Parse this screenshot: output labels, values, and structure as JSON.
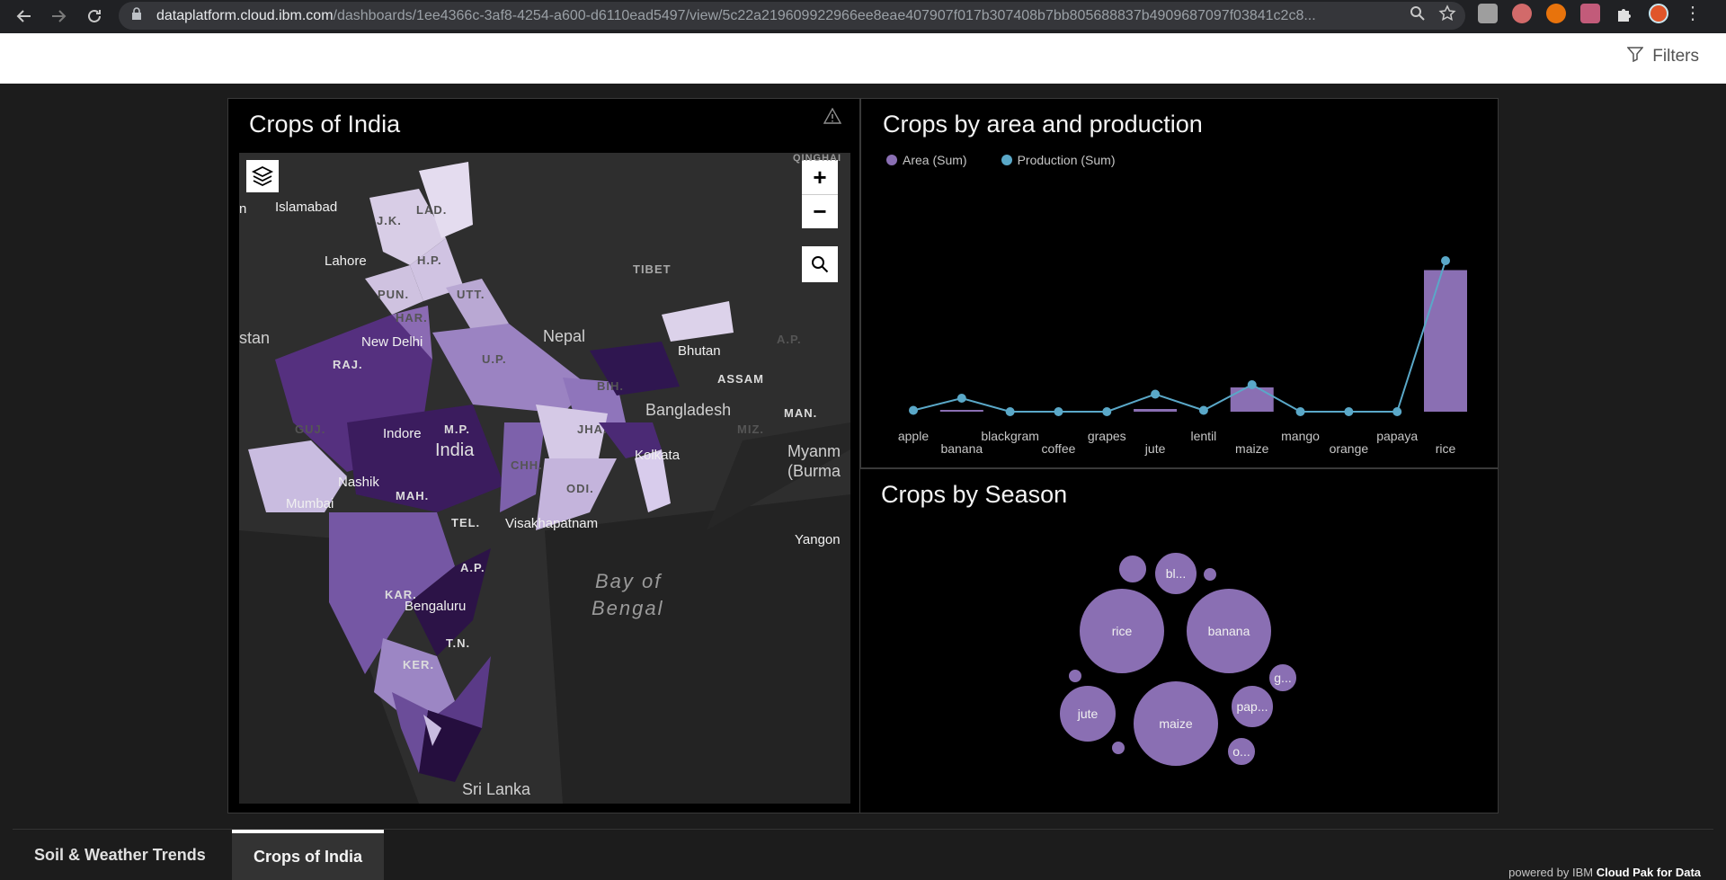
{
  "browser": {
    "url_host": "dataplatform.cloud.ibm.com",
    "url_path": "/dashboards/1ee4366c-3af8-4254-a600-d6110ead5497/view/5c22a219609922966ee8eae407907f017b307408b7bb805688837b4909687097f03841c2c8..."
  },
  "header": {
    "filters_label": "Filters"
  },
  "map_panel": {
    "title": "Crops of India",
    "labels": {
      "qinghai": "QINGHAI",
      "islamabad": "Islamabad",
      "jk": "J.K.",
      "lad": "LAD.",
      "lahore": "Lahore",
      "hp": "H.P.",
      "tibet": "TIBET",
      "pun": "PUN.",
      "utt": "UTT.",
      "har": "HAR.",
      "new_delhi": "New Delhi",
      "nepal": "Nepal",
      "bhutan": "Bhutan",
      "ap_east": "A.P.",
      "stan": "stan",
      "raj": "RAJ.",
      "up": "U.P.",
      "assam": "ASSAM",
      "bih": "BIH.",
      "man": "MAN.",
      "bangladesh": "Bangladesh",
      "guj": "GUJ.",
      "mp": "M.P.",
      "indore": "Indore",
      "india": "India",
      "jha": "JHA.",
      "miz": "MIZ.",
      "kolkata": "Kolkata",
      "myanmar1": "Myanm",
      "myanmar2": "(Burma",
      "chh": "CHH.",
      "nashik": "Nashik",
      "mah": "MAH.",
      "odi": "ODI.",
      "mumbai": "Mumbai",
      "tel": "TEL.",
      "visakhapatnam": "Visakhapatnam",
      "yangon": "Yangon",
      "ap_south": "A.P.",
      "bay1": "Bay of",
      "bay2": "Bengal",
      "kar": "KAR.",
      "bengaluru": "Bengaluru",
      "tn": "T.N.",
      "ker": "KER.",
      "srilanka": "Sri Lanka",
      "n": "n"
    }
  },
  "bar_panel": {
    "title": "Crops by area and production",
    "legend": [
      {
        "label": "Area (Sum)",
        "color": "#8a6fb3"
      },
      {
        "label": "Production (Sum)",
        "color": "#5aa8c8"
      }
    ]
  },
  "bubble_panel": {
    "title": "Crops by Season",
    "bubbles": [
      {
        "label": "rice",
        "value": 48
      },
      {
        "label": "banana",
        "value": 48
      },
      {
        "label": "maize",
        "value": 48
      },
      {
        "label": "jute",
        "value": 32
      },
      {
        "label": "bl...",
        "value": 24
      },
      {
        "label": "pap...",
        "value": 24
      },
      {
        "label": "g...",
        "value": 16
      },
      {
        "label": "o...",
        "value": 16
      },
      {
        "label": "",
        "value": 16
      },
      {
        "label": "",
        "value": 8
      },
      {
        "label": "",
        "value": 8
      },
      {
        "label": "",
        "value": 8
      }
    ]
  },
  "chart_data": {
    "type": "bar",
    "categories": [
      "apple",
      "banana",
      "blackgram",
      "coffee",
      "grapes",
      "jute",
      "lentil",
      "maize",
      "mango",
      "orange",
      "papaya",
      "rice"
    ],
    "series": [
      {
        "name": "Area (Sum)",
        "type": "bar",
        "values": [
          0,
          1,
          0,
          0,
          0,
          2,
          0,
          18,
          0,
          0,
          0,
          105
        ]
      },
      {
        "name": "Production (Sum)",
        "type": "line",
        "values": [
          1,
          10,
          0,
          0,
          0,
          13,
          1,
          20,
          0,
          0,
          0,
          112
        ]
      }
    ],
    "ylim": [
      0,
      120
    ],
    "legend": "top-left",
    "grid": false
  },
  "tabs": [
    {
      "label": "Soil & Weather Trends",
      "active": false
    },
    {
      "label": "Crops of India",
      "active": true
    }
  ],
  "footer": {
    "powered_prefix": "powered by",
    "ibm": "IBM",
    "product": "Cloud Pak for Data"
  }
}
